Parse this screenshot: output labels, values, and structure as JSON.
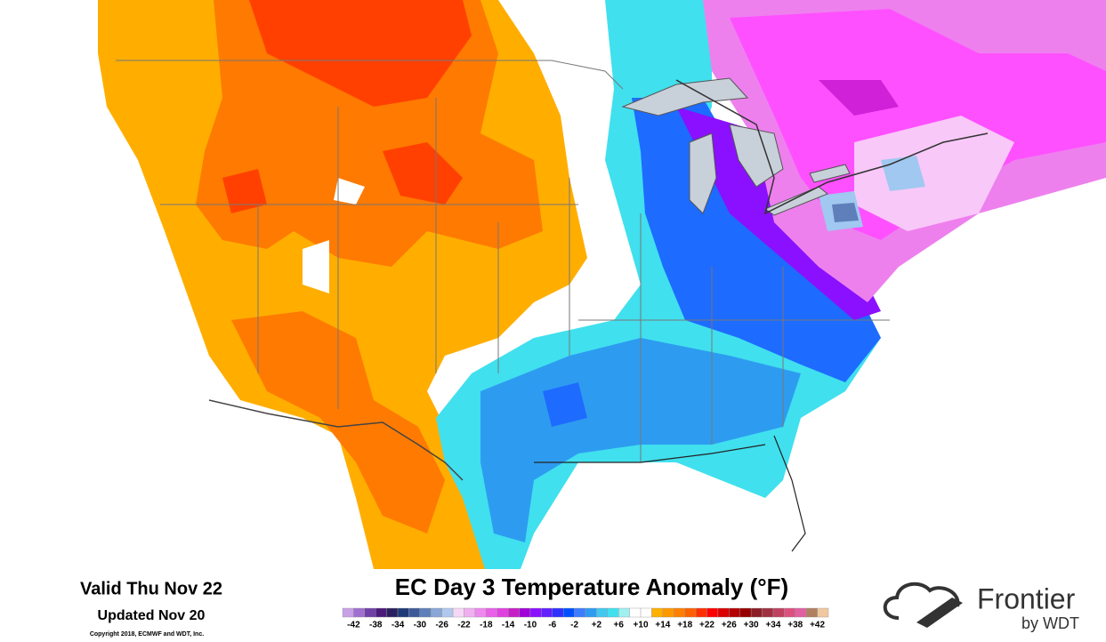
{
  "footer": {
    "valid": "Valid Thu Nov 22",
    "updated": "Updated Nov 20",
    "copyright": "Copyright 2018, ECMWF and WDT, Inc.",
    "title": "EC Day 3 Temperature Anomaly (°F)",
    "legend": {
      "labels": [
        "-42",
        "-38",
        "-34",
        "-30",
        "-26",
        "-22",
        "-18",
        "-14",
        "-10",
        "-6",
        "-2",
        "+2",
        "+6",
        "+10",
        "+14",
        "+18",
        "+22",
        "+26",
        "+30",
        "+34",
        "+38",
        "+42"
      ],
      "colors": [
        "#c8a0e6",
        "#a070d0",
        "#7040a8",
        "#4b1a7a",
        "#2a2060",
        "#1e3a78",
        "#3c5a9a",
        "#5f7fba",
        "#8aa6d6",
        "#b0c8ec",
        "#f6d8f6",
        "#f0b0f0",
        "#ee88ee",
        "#e860e8",
        "#e040e0",
        "#c81ec8",
        "#a000d8",
        "#8a10ff",
        "#6020ff",
        "#3030ff",
        "#0050ff",
        "#3c7dff",
        "#2d9cf0",
        "#40c8f0",
        "#40e0ee",
        "#a0f0f0",
        "#ffffff",
        "#ffffff",
        "#ffb000",
        "#ff9800",
        "#ff8000",
        "#ff6000",
        "#ff3000",
        "#ff0000",
        "#dc0000",
        "#b40000",
        "#960000",
        "#8c1e28",
        "#a03040",
        "#c04060",
        "#dc5080",
        "#e060a0",
        "#b08060",
        "#f0c8a0"
      ]
    },
    "logo": {
      "name": "Frontier",
      "by": "by WDT"
    }
  }
}
